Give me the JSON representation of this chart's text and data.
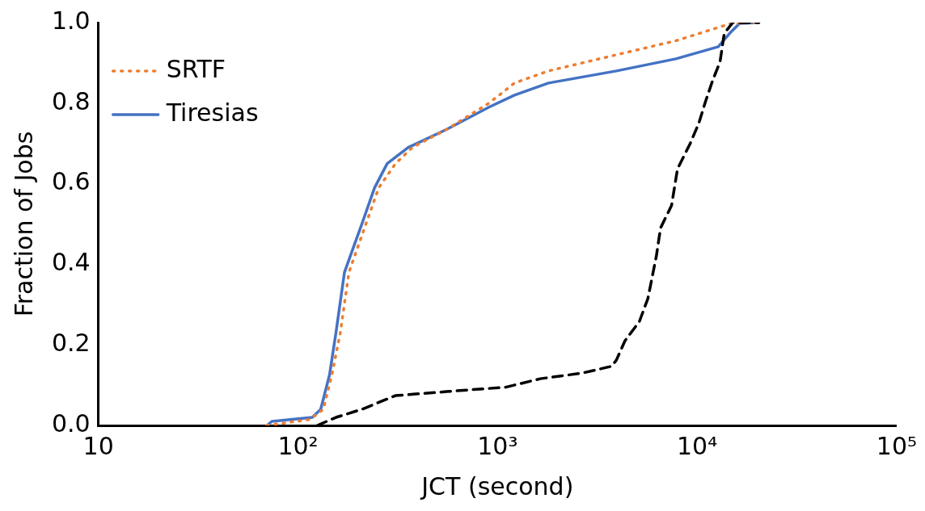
{
  "chart_data": {
    "type": "line",
    "xlabel": "JCT (second)",
    "ylabel": "Fraction of Jobs",
    "log": "x",
    "xlim": [
      10,
      100000
    ],
    "xticks": [
      10,
      {
        "value": 100,
        "label": "10²"
      },
      {
        "value": 1000,
        "label": "10³"
      },
      {
        "value": 10000,
        "label": "10⁴"
      },
      {
        "value": 100000,
        "label": "10⁵"
      }
    ],
    "ylim": [
      0,
      1
    ],
    "yticks": [
      {
        "value": 0,
        "label": "0.0"
      },
      {
        "value": 0.2,
        "label": "0.2"
      },
      {
        "value": 0.4,
        "label": "0.4"
      },
      {
        "value": 0.6,
        "label": "0.6"
      },
      {
        "value": 0.8,
        "label": "0.8"
      },
      {
        "value": 1,
        "label": "1.0"
      }
    ],
    "grid": false,
    "legend": "top left",
    "marker": "none",
    "series": [
      {
        "color": "#000000",
        "line_style": "dashed",
        "x": [
          125,
          155,
          209,
          308,
          556,
          1100,
          1640,
          2660,
          3740,
          3940,
          4350,
          5140,
          5670,
          6250,
          6560,
          7450,
          7980,
          9240,
          10200,
          11040,
          11940,
          13040,
          13680,
          15100,
          20400
        ],
        "values": [
          0,
          0.02,
          0.04,
          0.074,
          0.084,
          0.095,
          0.116,
          0.13,
          0.147,
          0.162,
          0.21,
          0.258,
          0.315,
          0.42,
          0.49,
          0.546,
          0.637,
          0.7,
          0.75,
          0.805,
          0.855,
          0.903,
          0.973,
          1,
          1
        ]
      },
      {
        "name": "SRTF",
        "color": "#ed7d31",
        "line_style": "dotted",
        "x": [
          70,
          115,
          134,
          148,
          163,
          180,
          219,
          254,
          308,
          374,
          556,
          906,
          1216,
          1800,
          3940,
          7830,
          14800,
          20400
        ],
        "values": [
          0,
          0.015,
          0.04,
          0.126,
          0.23,
          0.38,
          0.5,
          0.59,
          0.65,
          0.69,
          0.735,
          0.8,
          0.85,
          0.88,
          0.92,
          0.955,
          0.998,
          1
        ]
      },
      {
        "name": "Tiresias",
        "color": "#4472c4",
        "line_style": "solid",
        "x": [
          70,
          74,
          118,
          130,
          144,
          155,
          171,
          189,
          209,
          242,
          280,
          357,
          556,
          906,
          1216,
          1800,
          3940,
          7830,
          12770,
          14800,
          16330,
          20400
        ],
        "values": [
          0,
          0.01,
          0.02,
          0.04,
          0.126,
          0.23,
          0.38,
          0.44,
          0.5,
          0.59,
          0.65,
          0.69,
          0.735,
          0.79,
          0.82,
          0.85,
          0.88,
          0.91,
          0.94,
          0.977,
          0.998,
          1
        ]
      }
    ]
  }
}
